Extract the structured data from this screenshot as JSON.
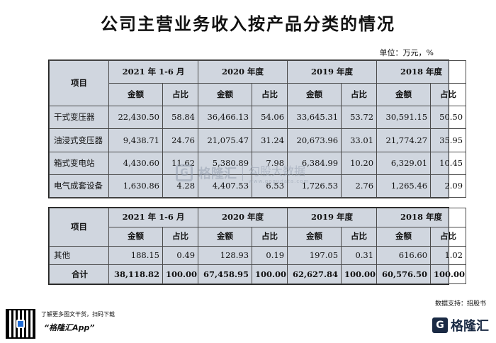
{
  "title": "公司主营业务收入按产品分类的情况",
  "unit": "单位：万元，%",
  "headers": {
    "item": "项目",
    "periods": [
      "2021 年 1-6 月",
      "2020 年度",
      "2019 年度",
      "2018 年度"
    ],
    "amount": "金额",
    "share": "占比"
  },
  "table1_rows": [
    {
      "name": "干式变压器",
      "values": [
        "22,430.50",
        "58.84",
        "36,466.13",
        "54.06",
        "33,645.31",
        "53.72",
        "30,591.15",
        "50.50"
      ]
    },
    {
      "name": "油浸式变压器",
      "values": [
        "9,438.71",
        "24.76",
        "21,075.47",
        "31.24",
        "20,673.96",
        "33.01",
        "21,774.27",
        "35.95"
      ]
    },
    {
      "name": "箱式变电站",
      "values": [
        "4,430.60",
        "11.62",
        "5,380.89",
        "7.98",
        "6,384.99",
        "10.20",
        "6,329.01",
        "10.45"
      ]
    },
    {
      "name": "电气成套设备",
      "values": [
        "1,630.86",
        "4.28",
        "4,407.53",
        "6.53",
        "1,726.53",
        "2.76",
        "1,265.46",
        "2.09"
      ]
    }
  ],
  "table2_rows": [
    {
      "name": "其他",
      "values": [
        "188.15",
        "0.49",
        "128.93",
        "0.19",
        "197.05",
        "0.31",
        "616.60",
        "1.02"
      ]
    }
  ],
  "total_row": {
    "name": "合计",
    "values": [
      "38,118.82",
      "100.00",
      "67,458.95",
      "100.00",
      "62,627.84",
      "100.00",
      "60,576.50",
      "100.00"
    ]
  },
  "watermark": {
    "logo": "G",
    "brand": "格隆汇",
    "name": "勾股大数据",
    "url": "www.gogudata.com"
  },
  "source": "数据支持：招股书",
  "footer": {
    "promo_line": "了解更多图文干货，扫码下载",
    "app_name": "“格隆汇App”",
    "brand_logo": "G",
    "brand_text": "格隆汇"
  }
}
